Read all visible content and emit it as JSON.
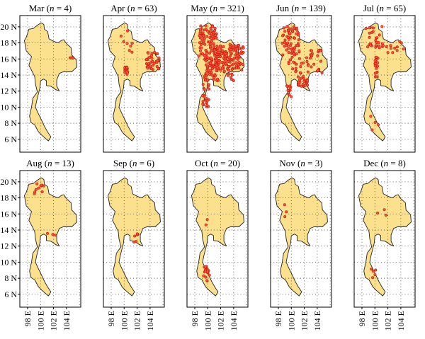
{
  "figure": {
    "map_style": {
      "land_color": "#fbe18d",
      "outline_color": "#222222",
      "hotspot_color": "#e8321c",
      "grid": "dotted"
    },
    "y_ticks": [
      "20 N",
      "18 N",
      "16 N",
      "14 N",
      "12 N",
      "10 N",
      "8 N",
      "6 N"
    ],
    "x_ticks": [
      "98 E",
      "100 E",
      "102 E",
      "104 E"
    ],
    "panels": [
      {
        "month": "Mar",
        "n": "4"
      },
      {
        "month": "Apr",
        "n": "63"
      },
      {
        "month": "May",
        "n": "321"
      },
      {
        "month": "Jun",
        "n": "139"
      },
      {
        "month": "Jul",
        "n": "65"
      },
      {
        "month": "Aug",
        "n": "13"
      },
      {
        "month": "Sep",
        "n": "6"
      },
      {
        "month": "Oct",
        "n": "20"
      },
      {
        "month": "Nov",
        "n": "3"
      },
      {
        "month": "Dec",
        "n": "8"
      }
    ]
  }
}
